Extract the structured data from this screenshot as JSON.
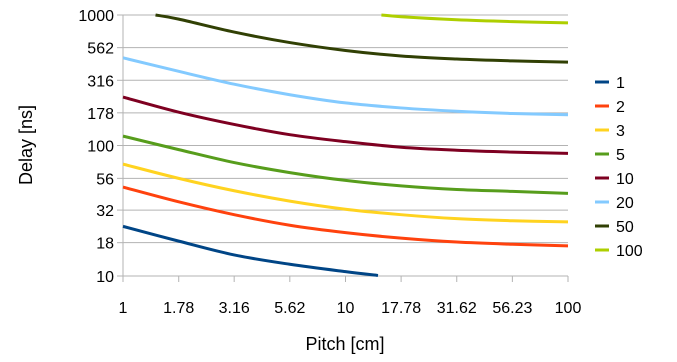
{
  "chart_data": {
    "type": "line",
    "title": "",
    "xlabel": "Pitch [cm]",
    "ylabel": "Delay [ns]",
    "x_scale": "log",
    "y_scale": "log",
    "xlim": [
      1,
      100
    ],
    "ylim": [
      10,
      1000
    ],
    "x_ticks": [
      "1",
      "1.78",
      "3.16",
      "5.62",
      "10",
      "17.78",
      "31.62",
      "56.23",
      "100"
    ],
    "y_ticks": [
      "10",
      "18",
      "32",
      "56",
      "100",
      "178",
      "316",
      "562",
      "1000"
    ],
    "grid": "horizontal",
    "legend_position": "right",
    "series": [
      {
        "name": "1",
        "color": "#004586",
        "x": [
          1,
          1.78,
          3.16,
          5.62,
          10,
          14
        ],
        "y": [
          24,
          18.5,
          14.5,
          12.3,
          10.8,
          10.1
        ]
      },
      {
        "name": "2",
        "color": "#ff420e",
        "x": [
          1,
          1.78,
          3.16,
          5.62,
          10,
          17.78,
          31.62,
          56.23,
          100
        ],
        "y": [
          48,
          37,
          29.5,
          24.5,
          21.5,
          19.5,
          18.2,
          17.5,
          17
        ]
      },
      {
        "name": "3",
        "color": "#ffd320",
        "x": [
          1,
          1.78,
          3.16,
          5.62,
          10,
          17.78,
          31.62,
          56.23,
          100
        ],
        "y": [
          72,
          56,
          45,
          37.5,
          32.5,
          29.5,
          27.5,
          26.5,
          26
        ]
      },
      {
        "name": "5",
        "color": "#579d1c",
        "x": [
          1,
          1.78,
          3.16,
          5.62,
          10,
          17.78,
          31.62,
          56.23,
          100
        ],
        "y": [
          118,
          93,
          74,
          62,
          54,
          49,
          46,
          44.5,
          43
        ]
      },
      {
        "name": "10",
        "color": "#7e0021",
        "x": [
          1,
          1.78,
          3.16,
          5.62,
          10,
          17.78,
          31.62,
          56.23,
          100
        ],
        "y": [
          235,
          180,
          145,
          121,
          107,
          97,
          92,
          89,
          87
        ]
      },
      {
        "name": "20",
        "color": "#83caff",
        "x": [
          1,
          1.78,
          3.16,
          5.62,
          10,
          17.78,
          31.62,
          56.23,
          100
        ],
        "y": [
          470,
          370,
          295,
          245,
          212,
          194,
          183,
          176,
          172
        ]
      },
      {
        "name": "50",
        "color": "#314004",
        "x": [
          1.4,
          1.78,
          3.16,
          5.62,
          10,
          17.78,
          31.62,
          56.23,
          100
        ],
        "y": [
          1000,
          930,
          740,
          615,
          535,
          485,
          460,
          445,
          435
        ]
      },
      {
        "name": "100",
        "color": "#aecf00",
        "x": [
          14.5,
          17.78,
          31.62,
          56.23,
          100
        ],
        "y": [
          1000,
          970,
          920,
          890,
          870
        ]
      }
    ]
  }
}
